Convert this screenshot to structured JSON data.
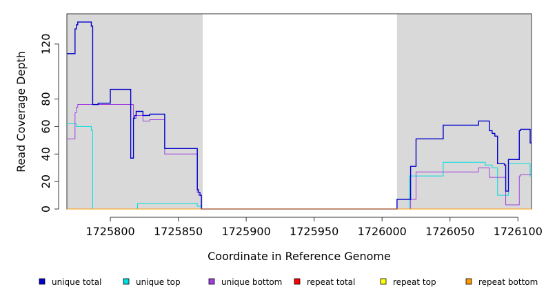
{
  "chart_data": {
    "type": "line",
    "title": "",
    "xlabel": "Coordinate in Reference Genome",
    "ylabel": "Read Coverage Depth",
    "xlim": [
      1725768,
      1726110
    ],
    "ylim": [
      0,
      142
    ],
    "xticks": [
      1725800,
      1725850,
      1725900,
      1725950,
      1726000,
      1726050,
      1726100
    ],
    "yticks": [
      0,
      20,
      40,
      60,
      80,
      120
    ],
    "grid": false,
    "shaded_regions": [
      {
        "x0": 1725768,
        "x1": 1725868,
        "color": "#d9d9d9"
      },
      {
        "x0": 1726011,
        "x1": 1726110,
        "color": "#d9d9d9"
      }
    ],
    "legend_position": "bottom",
    "series": [
      {
        "name": "unique total",
        "color": "#0000cc",
        "points": [
          [
            1725768,
            113
          ],
          [
            1725774,
            113
          ],
          [
            1725774,
            131
          ],
          [
            1725775,
            131
          ],
          [
            1725775,
            134
          ],
          [
            1725776,
            134
          ],
          [
            1725776,
            136
          ],
          [
            1725786,
            136
          ],
          [
            1725786,
            133
          ],
          [
            1725787,
            133
          ],
          [
            1725787,
            76
          ],
          [
            1725791,
            76
          ],
          [
            1725791,
            77
          ],
          [
            1725800,
            77
          ],
          [
            1725800,
            87
          ],
          [
            1725815,
            87
          ],
          [
            1725815,
            37
          ],
          [
            1725817,
            37
          ],
          [
            1725817,
            66
          ],
          [
            1725818,
            66
          ],
          [
            1725818,
            68
          ],
          [
            1725819,
            68
          ],
          [
            1725819,
            71
          ],
          [
            1725824,
            71
          ],
          [
            1725824,
            68
          ],
          [
            1725829,
            68
          ],
          [
            1725829,
            69
          ],
          [
            1725840,
            69
          ],
          [
            1725840,
            44
          ],
          [
            1725864,
            44
          ],
          [
            1725864,
            14
          ],
          [
            1725865,
            14
          ],
          [
            1725865,
            12
          ],
          [
            1725866,
            12
          ],
          [
            1725866,
            10
          ],
          [
            1725867,
            10
          ],
          [
            1725867,
            0
          ],
          [
            1726011,
            0
          ],
          [
            1726011,
            7
          ],
          [
            1726021,
            7
          ],
          [
            1726021,
            31
          ],
          [
            1726025,
            31
          ],
          [
            1726025,
            51
          ],
          [
            1726045,
            51
          ],
          [
            1726045,
            61
          ],
          [
            1726071,
            61
          ],
          [
            1726071,
            64
          ],
          [
            1726079,
            64
          ],
          [
            1726079,
            57
          ],
          [
            1726081,
            57
          ],
          [
            1726081,
            55
          ],
          [
            1726083,
            55
          ],
          [
            1726083,
            53
          ],
          [
            1726085,
            53
          ],
          [
            1726085,
            33
          ],
          [
            1726090,
            33
          ],
          [
            1726090,
            32
          ],
          [
            1726091,
            32
          ],
          [
            1726091,
            13
          ],
          [
            1726093,
            13
          ],
          [
            1726093,
            36
          ],
          [
            1726101,
            36
          ],
          [
            1726101,
            57
          ],
          [
            1726102,
            57
          ],
          [
            1726102,
            58
          ],
          [
            1726109,
            58
          ],
          [
            1726109,
            48
          ],
          [
            1726110,
            48
          ]
        ]
      },
      {
        "name": "unique top",
        "color": "#00dddd",
        "points": [
          [
            1725768,
            62
          ],
          [
            1725775,
            62
          ],
          [
            1725775,
            60
          ],
          [
            1725786,
            60
          ],
          [
            1725786,
            57
          ],
          [
            1725787,
            57
          ],
          [
            1725787,
            0
          ],
          [
            1725820,
            0
          ],
          [
            1725820,
            4
          ],
          [
            1725864,
            4
          ],
          [
            1725864,
            2
          ],
          [
            1725867,
            2
          ],
          [
            1725867,
            0
          ],
          [
            1726020,
            0
          ],
          [
            1726020,
            24
          ],
          [
            1726045,
            24
          ],
          [
            1726045,
            34
          ],
          [
            1726076,
            34
          ],
          [
            1726076,
            32
          ],
          [
            1726081,
            32
          ],
          [
            1726081,
            30
          ],
          [
            1726085,
            30
          ],
          [
            1726085,
            10
          ],
          [
            1726093,
            10
          ],
          [
            1726093,
            33
          ],
          [
            1726109,
            33
          ],
          [
            1726109,
            24
          ],
          [
            1726110,
            24
          ]
        ]
      },
      {
        "name": "unique bottom",
        "color": "#a040e0",
        "points": [
          [
            1725768,
            51
          ],
          [
            1725774,
            51
          ],
          [
            1725774,
            70
          ],
          [
            1725775,
            70
          ],
          [
            1725775,
            74
          ],
          [
            1725776,
            74
          ],
          [
            1725776,
            76
          ],
          [
            1725800,
            76
          ],
          [
            1725800,
            76
          ],
          [
            1725817,
            76
          ],
          [
            1725817,
            66
          ],
          [
            1725819,
            66
          ],
          [
            1725819,
            68
          ],
          [
            1725824,
            68
          ],
          [
            1725824,
            64
          ],
          [
            1725829,
            64
          ],
          [
            1725829,
            65
          ],
          [
            1725840,
            65
          ],
          [
            1725840,
            40
          ],
          [
            1725864,
            40
          ],
          [
            1725864,
            12
          ],
          [
            1725865,
            12
          ],
          [
            1725865,
            10
          ],
          [
            1725867,
            10
          ],
          [
            1725867,
            0
          ],
          [
            1726021,
            0
          ],
          [
            1726021,
            7
          ],
          [
            1726025,
            7
          ],
          [
            1726025,
            27
          ],
          [
            1726071,
            27
          ],
          [
            1726071,
            30
          ],
          [
            1726079,
            30
          ],
          [
            1726079,
            23
          ],
          [
            1726091,
            23
          ],
          [
            1726091,
            3
          ],
          [
            1726101,
            3
          ],
          [
            1726101,
            24
          ],
          [
            1726102,
            24
          ],
          [
            1726102,
            25
          ],
          [
            1726109,
            25
          ],
          [
            1726109,
            25
          ],
          [
            1726110,
            25
          ]
        ]
      },
      {
        "name": "repeat total",
        "color": "#ff0000",
        "points": [
          [
            1725768,
            0
          ],
          [
            1726110,
            0
          ]
        ]
      },
      {
        "name": "repeat top",
        "color": "#ffff00",
        "points": [
          [
            1725768,
            0
          ],
          [
            1726110,
            0
          ]
        ]
      },
      {
        "name": "repeat bottom",
        "color": "#ff9900",
        "points": [
          [
            1725768,
            0
          ],
          [
            1726110,
            0
          ]
        ]
      }
    ]
  }
}
